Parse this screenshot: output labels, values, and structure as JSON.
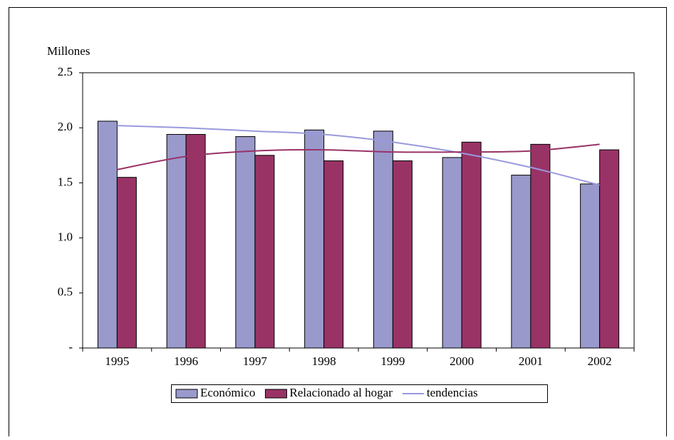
{
  "chart_data": {
    "type": "bar",
    "y_axis_label": "Millones",
    "categories": [
      "1995",
      "1996",
      "1997",
      "1998",
      "1999",
      "2000",
      "2001",
      "2002"
    ],
    "series": [
      {
        "name": "Económico",
        "color": "#9999cc",
        "values": [
          2.06,
          1.94,
          1.92,
          1.98,
          1.97,
          1.73,
          1.57,
          1.49
        ]
      },
      {
        "name": "Relacionado al hogar",
        "color": "#993366",
        "values": [
          1.55,
          1.94,
          1.75,
          1.7,
          1.7,
          1.87,
          1.85,
          1.8
        ]
      },
      {
        "name": "tendencias",
        "type": "line",
        "color": "#9999dd",
        "values": [
          2.02,
          2.0,
          1.97,
          1.94,
          1.87,
          1.77,
          1.64,
          1.48
        ]
      },
      {
        "type": "line",
        "color": "#993366",
        "values": [
          1.62,
          1.74,
          1.79,
          1.8,
          1.78,
          1.78,
          1.79,
          1.85
        ]
      }
    ],
    "ylim": [
      0,
      2.5
    ],
    "yticks": [
      {
        "value": 0,
        "label": "-"
      },
      0.5,
      {
        "value": 1,
        "label": "1.0"
      },
      1.5,
      {
        "value": 2,
        "label": "2.0"
      },
      2.5
    ],
    "grid": false,
    "legend": "bottom"
  }
}
